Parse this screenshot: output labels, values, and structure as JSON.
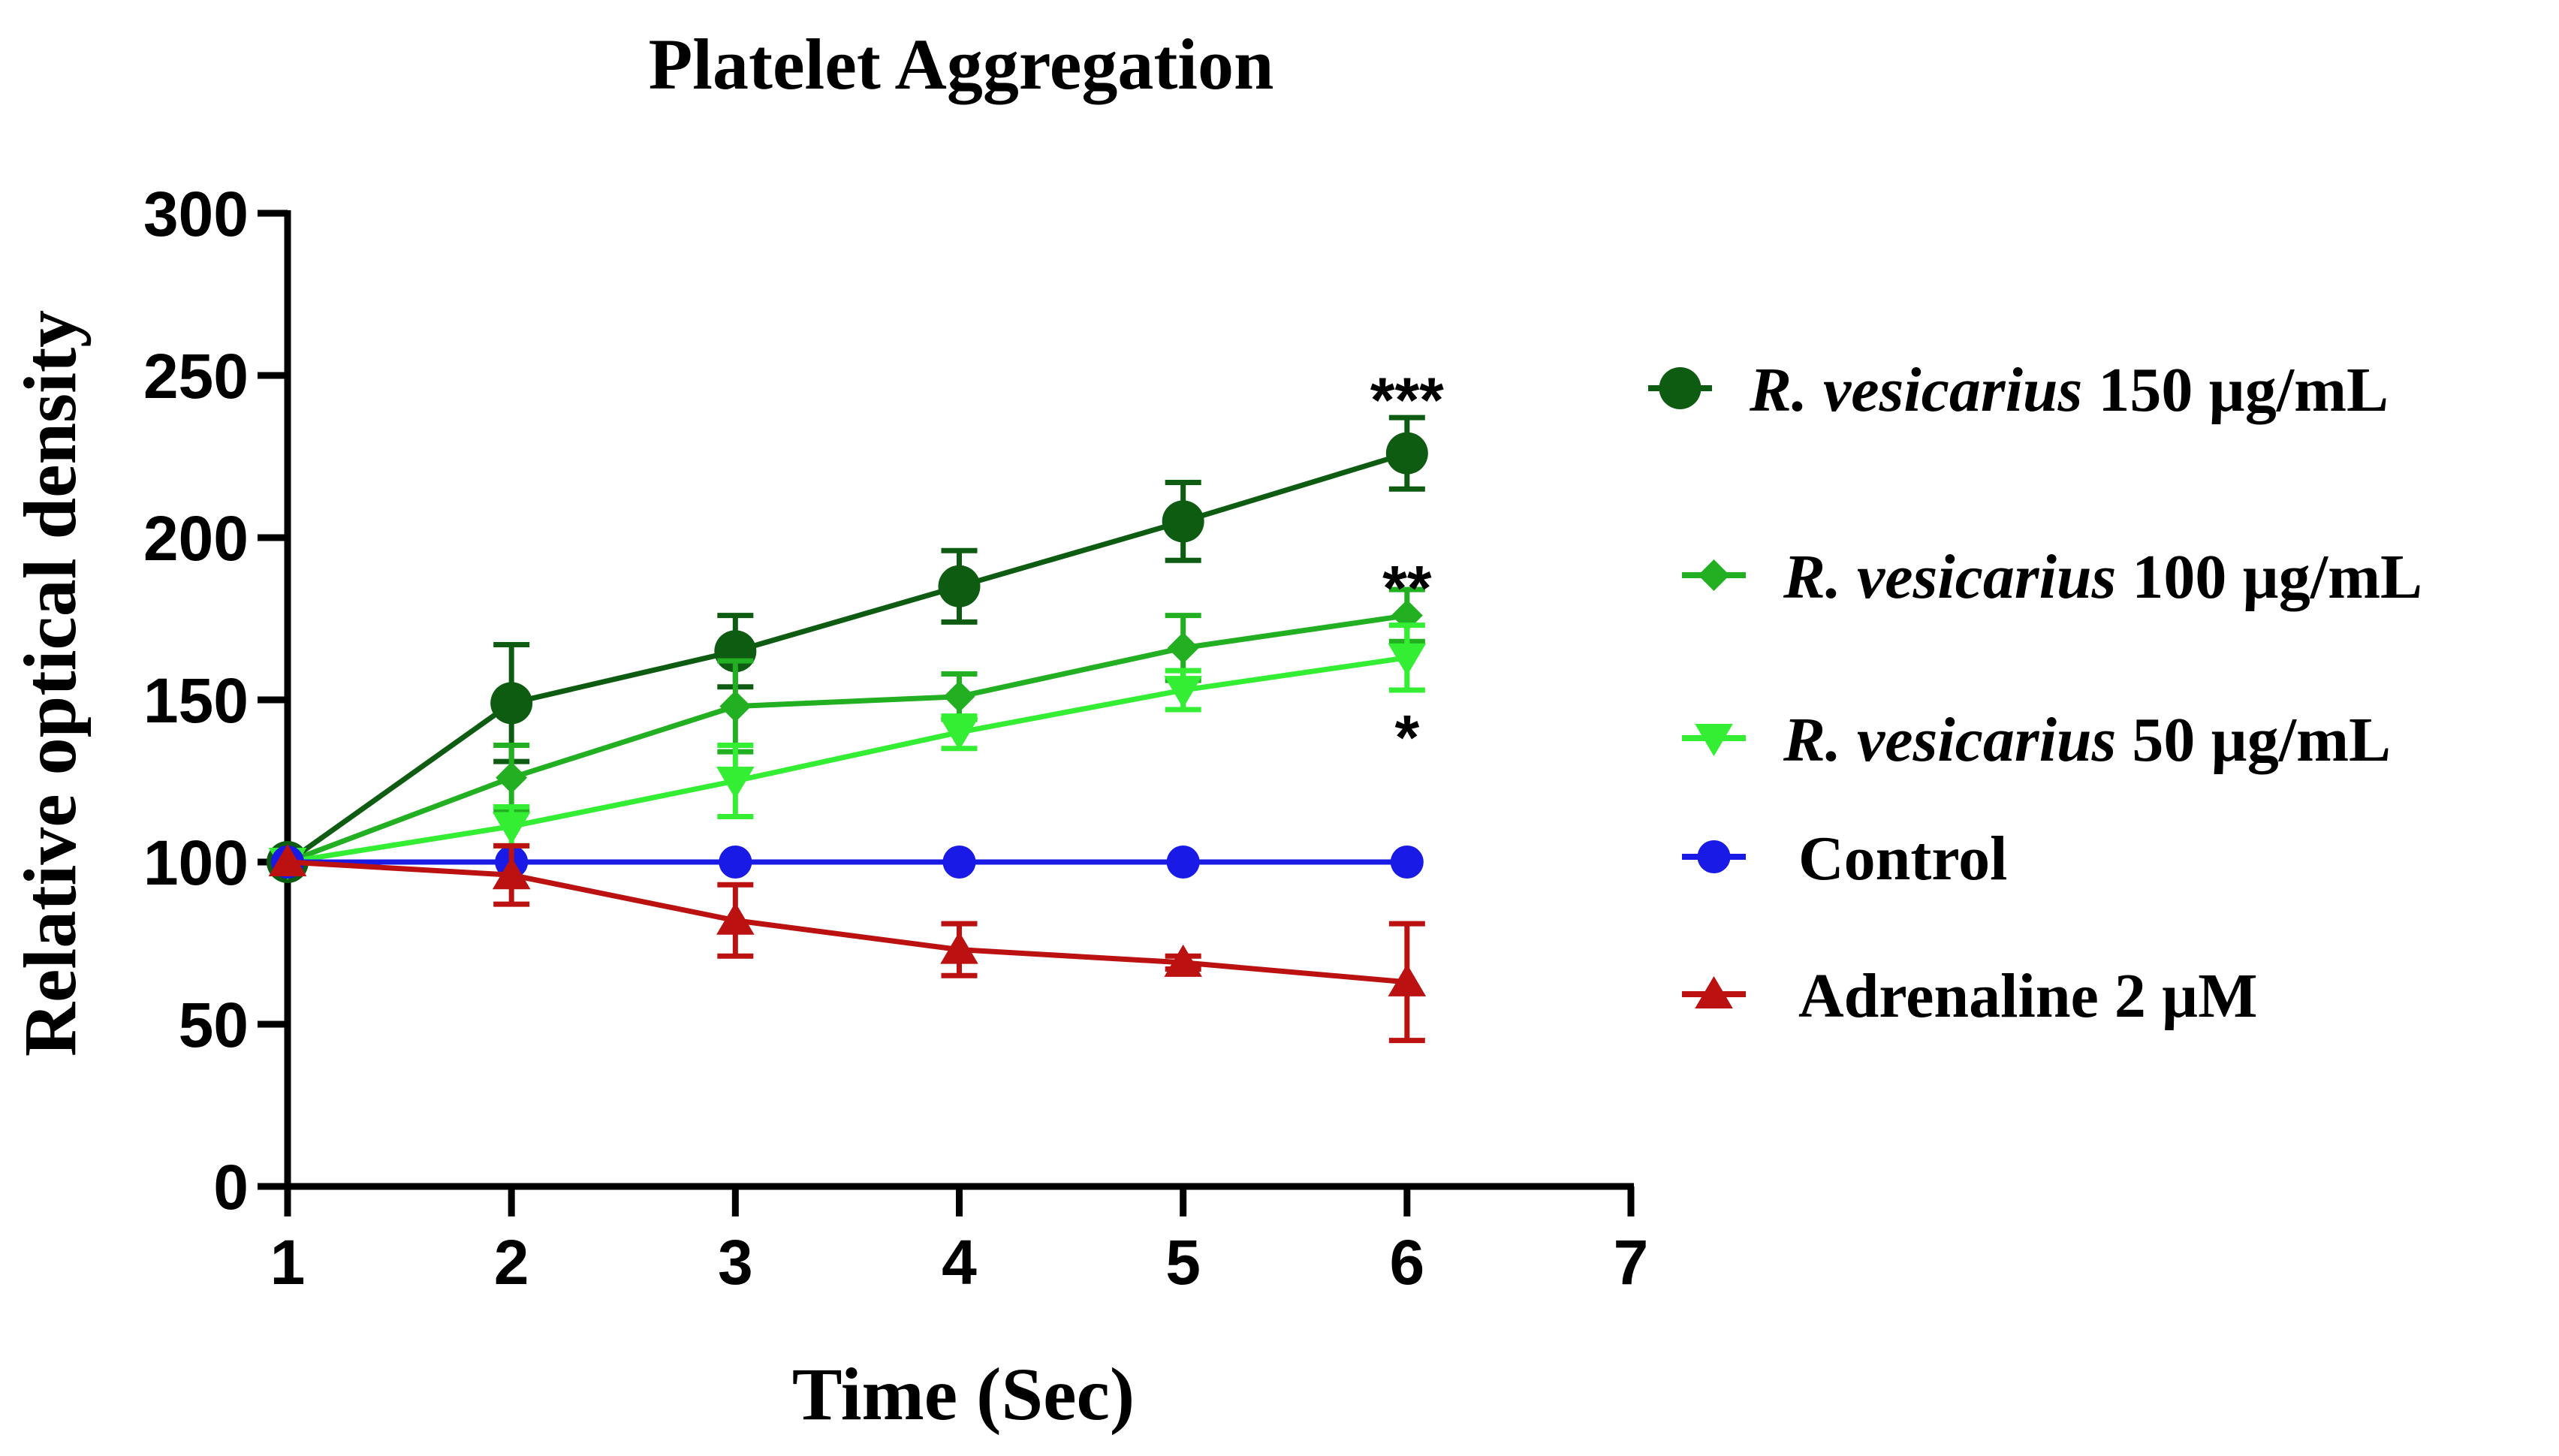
{
  "chart_data": {
    "type": "line",
    "title": "Platelet Aggregation",
    "xlabel": "Time (Sec)",
    "ylabel": "Relative optical density",
    "xlim": [
      1,
      7
    ],
    "ylim": [
      0,
      300
    ],
    "xticks": [
      "1",
      "2",
      "3",
      "4",
      "5",
      "6",
      "7"
    ],
    "yticks": [
      "0",
      "50",
      "100",
      "150",
      "200",
      "250",
      "300"
    ],
    "grid": false,
    "legend_position": "right",
    "x": [
      1,
      2,
      3,
      4,
      5,
      6
    ],
    "series": [
      {
        "name_italic": "R. vesicarius",
        "name_rest": " 150 µg/mL",
        "color": "#0d5c12",
        "marker": "circle",
        "values": [
          100,
          149,
          165,
          185,
          205,
          226
        ],
        "errors": [
          0,
          18,
          11,
          11,
          12,
          11
        ]
      },
      {
        "name_italic": "R. vesicarius",
        "name_rest": " 100 µg/mL",
        "color": "#22b022",
        "marker": "diamond",
        "values": [
          100,
          126,
          148,
          151,
          166,
          176
        ],
        "errors": [
          0,
          10,
          14,
          7,
          10,
          8
        ]
      },
      {
        "name_italic": "R. vesicarius",
        "name_rest": " 50 µg/mL",
        "color": "#33ee33",
        "marker": "triangle-down",
        "values": [
          100,
          111,
          125,
          140,
          153,
          163
        ],
        "errors": [
          0,
          6,
          11,
          5,
          6,
          10
        ]
      },
      {
        "name_italic": "",
        "name_rest": "Control",
        "color": "#1a1ae6",
        "marker": "circle",
        "values": [
          100,
          100,
          100,
          100,
          100,
          100
        ],
        "errors": [
          0,
          0,
          0,
          0,
          0,
          0
        ]
      },
      {
        "name_italic": "",
        "name_rest": "Adrenaline 2 µM",
        "color": "#bb1111",
        "marker": "triangle-up",
        "values": [
          100,
          96,
          82,
          73,
          69,
          63
        ],
        "errors": [
          0,
          9,
          11,
          8,
          2,
          18
        ]
      }
    ],
    "annotations": [
      {
        "text": "***",
        "x": 6,
        "y": 245
      },
      {
        "text": "**",
        "x": 6,
        "y": 187
      },
      {
        "text": "*",
        "x": 6,
        "y": 141
      }
    ]
  }
}
